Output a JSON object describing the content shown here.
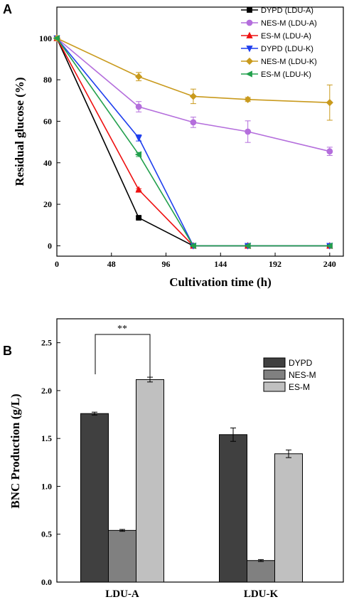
{
  "panel_a_label": "A",
  "panel_b_label": "B",
  "chart_data": [
    {
      "type": "line",
      "xlabel": "Cultivation time (h)",
      "ylabel": "Residual glucose (%)",
      "xlim": [
        0,
        252
      ],
      "ylim": [
        -5,
        115
      ],
      "xticks": [
        0,
        48,
        96,
        144,
        192,
        240
      ],
      "yticks": [
        0,
        20,
        40,
        60,
        80,
        100
      ],
      "legend_position": "top-right",
      "series": [
        {
          "name": "DYPD (LDU-A)",
          "color": "#000000",
          "marker": "square",
          "x": [
            0,
            72,
            120,
            168,
            240
          ],
          "y": [
            100,
            13.5,
            0,
            0,
            0
          ],
          "err": [
            0,
            0.5,
            0,
            0,
            0
          ]
        },
        {
          "name": "NES-M (LDU-A)",
          "color": "#b46edc",
          "marker": "circle",
          "x": [
            0,
            72,
            120,
            168,
            240
          ],
          "y": [
            100,
            67,
            59.5,
            55,
            45.5
          ],
          "err": [
            0,
            2.5,
            2.5,
            5.2,
            2
          ]
        },
        {
          "name": "ES-M (LDU-A)",
          "color": "#ee1111",
          "marker": "triangle-up",
          "x": [
            0,
            72,
            120,
            168,
            240
          ],
          "y": [
            100,
            27,
            0,
            0,
            0
          ],
          "err": [
            0,
            0.5,
            0,
            0,
            0
          ]
        },
        {
          "name": "DYPD (LDU-K)",
          "color": "#1f3fee",
          "marker": "triangle-down",
          "x": [
            0,
            72,
            120,
            168,
            240
          ],
          "y": [
            100,
            52,
            0,
            0,
            0
          ],
          "err": [
            0,
            1.5,
            0,
            0,
            0
          ]
        },
        {
          "name": "NES-M (LDU-K)",
          "color": "#c99a1d",
          "marker": "diamond",
          "x": [
            0,
            72,
            120,
            168,
            240
          ],
          "y": [
            100,
            81.5,
            72,
            70.5,
            69
          ],
          "err": [
            0,
            2,
            3.5,
            1,
            8.5
          ]
        },
        {
          "name": "ES-M (LDU-K)",
          "color": "#22a04d",
          "marker": "triangle-left",
          "x": [
            0,
            72,
            120,
            168,
            240
          ],
          "y": [
            100,
            44,
            0,
            0,
            0
          ],
          "err": [
            0,
            1,
            0,
            0,
            0
          ]
        }
      ]
    },
    {
      "type": "bar",
      "ylabel": "BNC Production (g/L)",
      "xlabel": "",
      "ylim": [
        0,
        2.75
      ],
      "yticks": [
        "0.0",
        "0.5",
        "1.0",
        "1.5",
        "2.0",
        "2.5"
      ],
      "categories": [
        "LDU-A",
        "LDU-K"
      ],
      "legend_position": "top-right",
      "series": [
        {
          "name": "DYPD",
          "color": "#404040",
          "values": [
            1.76,
            1.54
          ],
          "err": [
            0.015,
            0.07
          ]
        },
        {
          "name": "NES-M",
          "color": "#808080",
          "values": [
            0.54,
            0.225
          ],
          "err": [
            0.01,
            0.01
          ]
        },
        {
          "name": "ES-M",
          "color": "#c0c0c0",
          "values": [
            2.115,
            1.34
          ],
          "err": [
            0.025,
            0.04
          ]
        }
      ],
      "annotation": "**"
    }
  ]
}
